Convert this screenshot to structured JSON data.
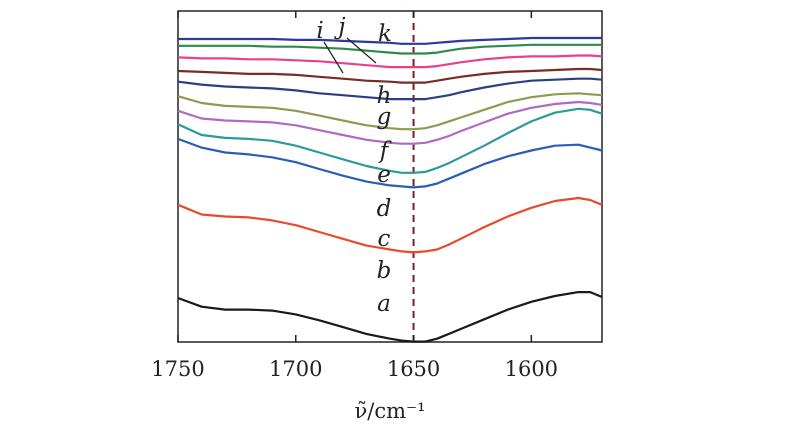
{
  "chart_data": {
    "type": "line",
    "title": "",
    "xlabel": "ν̃/cm⁻¹",
    "ylabel": "",
    "x_direction": "reversed",
    "xlim": [
      1750,
      1570
    ],
    "x_ticks": [
      1750,
      1700,
      1650,
      1600
    ],
    "y_axis": "offset absorbance (arbitrary units, no tick labels)",
    "reference_line": {
      "x": 1650,
      "style": "dashed",
      "color": "#7a2020"
    },
    "series": [
      {
        "name": "a",
        "color": "#1a1a1a",
        "x": [
          1750,
          1740,
          1730,
          1720,
          1710,
          1700,
          1690,
          1680,
          1670,
          1660,
          1655,
          1650,
          1645,
          1640,
          1635,
          1630,
          1620,
          1610,
          1600,
          1590,
          1580,
          1575,
          1570
        ],
        "y": [
          0.32,
          0.23,
          0.2,
          0.2,
          0.19,
          0.15,
          0.09,
          0.02,
          -0.05,
          -0.1,
          -0.12,
          -0.13,
          -0.13,
          -0.1,
          -0.05,
          0.0,
          0.1,
          0.2,
          0.28,
          0.34,
          0.38,
          0.38,
          0.33
        ]
      },
      {
        "name": "b",
        "color": "#e84a2e",
        "x": [
          1750,
          1740,
          1730,
          1720,
          1710,
          1700,
          1690,
          1680,
          1670,
          1660,
          1655,
          1650,
          1645,
          1640,
          1635,
          1630,
          1620,
          1610,
          1600,
          1590,
          1580,
          1575,
          1570
        ],
        "y": [
          1.28,
          1.18,
          1.16,
          1.15,
          1.12,
          1.07,
          1.0,
          0.93,
          0.86,
          0.82,
          0.8,
          0.79,
          0.8,
          0.82,
          0.87,
          0.93,
          1.05,
          1.16,
          1.25,
          1.32,
          1.35,
          1.33,
          1.28
        ]
      },
      {
        "name": "c",
        "color": "#2a5db8",
        "x": [
          1750,
          1740,
          1730,
          1720,
          1710,
          1700,
          1690,
          1680,
          1670,
          1660,
          1655,
          1650,
          1645,
          1640,
          1635,
          1630,
          1620,
          1610,
          1600,
          1590,
          1580,
          1575,
          1570
        ],
        "y": [
          1.96,
          1.87,
          1.82,
          1.8,
          1.77,
          1.72,
          1.65,
          1.58,
          1.52,
          1.48,
          1.47,
          1.46,
          1.47,
          1.5,
          1.55,
          1.6,
          1.7,
          1.78,
          1.84,
          1.89,
          1.9,
          1.87,
          1.84
        ]
      },
      {
        "name": "d",
        "color": "#2a9a9a",
        "x": [
          1750,
          1740,
          1730,
          1720,
          1710,
          1700,
          1690,
          1680,
          1670,
          1660,
          1655,
          1650,
          1645,
          1640,
          1635,
          1630,
          1620,
          1610,
          1600,
          1590,
          1580,
          1575,
          1570
        ],
        "y": [
          2.11,
          2.0,
          1.97,
          1.96,
          1.94,
          1.89,
          1.82,
          1.75,
          1.68,
          1.63,
          1.61,
          1.61,
          1.62,
          1.66,
          1.71,
          1.77,
          1.89,
          2.02,
          2.14,
          2.23,
          2.27,
          2.26,
          2.22
        ]
      },
      {
        "name": "e",
        "color": "#b06ac0",
        "x": [
          1750,
          1740,
          1730,
          1720,
          1710,
          1700,
          1690,
          1680,
          1670,
          1660,
          1655,
          1650,
          1645,
          1640,
          1635,
          1630,
          1620,
          1610,
          1600,
          1590,
          1580,
          1575,
          1570
        ],
        "y": [
          2.25,
          2.17,
          2.15,
          2.14,
          2.13,
          2.1,
          2.05,
          2.0,
          1.95,
          1.92,
          1.91,
          1.91,
          1.92,
          1.95,
          1.99,
          2.04,
          2.13,
          2.22,
          2.28,
          2.32,
          2.34,
          2.33,
          2.31
        ]
      },
      {
        "name": "f",
        "color": "#8e9a50",
        "x": [
          1750,
          1740,
          1730,
          1720,
          1710,
          1700,
          1690,
          1680,
          1670,
          1660,
          1655,
          1650,
          1645,
          1640,
          1635,
          1630,
          1620,
          1610,
          1600,
          1590,
          1580,
          1575,
          1570
        ],
        "y": [
          2.4,
          2.33,
          2.3,
          2.29,
          2.28,
          2.25,
          2.2,
          2.15,
          2.1,
          2.07,
          2.06,
          2.06,
          2.07,
          2.1,
          2.14,
          2.18,
          2.26,
          2.34,
          2.39,
          2.42,
          2.43,
          2.42,
          2.41
        ]
      },
      {
        "name": "g",
        "color": "#2a3f80",
        "x": [
          1750,
          1740,
          1730,
          1720,
          1710,
          1700,
          1690,
          1680,
          1670,
          1660,
          1655,
          1650,
          1645,
          1640,
          1635,
          1630,
          1620,
          1610,
          1600,
          1590,
          1580,
          1575,
          1570
        ],
        "y": [
          2.55,
          2.52,
          2.5,
          2.49,
          2.48,
          2.46,
          2.43,
          2.41,
          2.39,
          2.37,
          2.37,
          2.37,
          2.37,
          2.39,
          2.41,
          2.44,
          2.49,
          2.53,
          2.56,
          2.57,
          2.58,
          2.58,
          2.57
        ]
      },
      {
        "name": "h",
        "color": "#7a2b25",
        "x": [
          1750,
          1740,
          1730,
          1720,
          1710,
          1700,
          1690,
          1680,
          1670,
          1660,
          1655,
          1650,
          1645,
          1640,
          1635,
          1630,
          1620,
          1610,
          1600,
          1590,
          1580,
          1575,
          1570
        ],
        "y": [
          2.66,
          2.65,
          2.64,
          2.63,
          2.63,
          2.62,
          2.6,
          2.58,
          2.56,
          2.55,
          2.54,
          2.54,
          2.54,
          2.56,
          2.58,
          2.6,
          2.63,
          2.65,
          2.66,
          2.67,
          2.68,
          2.68,
          2.67
        ]
      },
      {
        "name": "i",
        "color": "#e8408a",
        "x": [
          1750,
          1740,
          1730,
          1720,
          1710,
          1700,
          1690,
          1680,
          1670,
          1660,
          1655,
          1650,
          1645,
          1640,
          1635,
          1630,
          1620,
          1610,
          1600,
          1590,
          1580,
          1575,
          1570
        ],
        "y": [
          2.8,
          2.79,
          2.79,
          2.78,
          2.78,
          2.77,
          2.76,
          2.74,
          2.72,
          2.7,
          2.7,
          2.7,
          2.7,
          2.71,
          2.73,
          2.75,
          2.78,
          2.8,
          2.81,
          2.81,
          2.82,
          2.82,
          2.81
        ]
      },
      {
        "name": "j",
        "color": "#2f8a48",
        "x": [
          1750,
          1740,
          1730,
          1720,
          1710,
          1700,
          1690,
          1680,
          1670,
          1660,
          1655,
          1650,
          1645,
          1640,
          1635,
          1630,
          1620,
          1610,
          1600,
          1590,
          1580,
          1575,
          1570
        ],
        "y": [
          2.92,
          2.92,
          2.92,
          2.92,
          2.91,
          2.91,
          2.9,
          2.89,
          2.87,
          2.85,
          2.84,
          2.84,
          2.84,
          2.85,
          2.87,
          2.89,
          2.91,
          2.92,
          2.93,
          2.93,
          2.93,
          2.93,
          2.93
        ]
      },
      {
        "name": "k",
        "color": "#2a3aa0",
        "x": [
          1750,
          1740,
          1730,
          1720,
          1710,
          1700,
          1690,
          1680,
          1670,
          1660,
          1655,
          1650,
          1645,
          1640,
          1635,
          1630,
          1620,
          1610,
          1600,
          1590,
          1580,
          1575,
          1570
        ],
        "y": [
          2.99,
          2.99,
          2.99,
          2.99,
          2.99,
          2.98,
          2.98,
          2.97,
          2.96,
          2.95,
          2.94,
          2.94,
          2.94,
          2.95,
          2.96,
          2.97,
          2.98,
          2.99,
          3.0,
          3.0,
          3.0,
          3.0,
          3.0
        ]
      }
    ]
  }
}
